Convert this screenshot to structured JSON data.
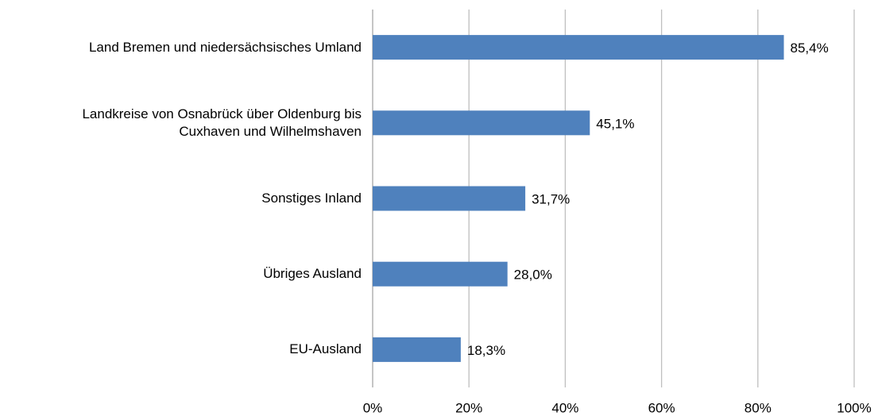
{
  "chart_data": {
    "type": "bar",
    "orientation": "horizontal",
    "categories": [
      "Land Bremen und niedersächsisches Umland",
      "Landkreise von Osnabrück über Oldenburg bis\nCuxhaven und Wilhelmshaven",
      "Sonstiges Inland",
      "Übriges Ausland",
      "EU-Ausland"
    ],
    "values": [
      85.4,
      45.1,
      31.7,
      28.0,
      18.3
    ],
    "value_labels": [
      "85,4%",
      "45,1%",
      "31,7%",
      "28,0%",
      "18,3%"
    ],
    "color": "#4f81bd",
    "xlim": [
      0,
      100
    ],
    "xticks": [
      {
        "value": 0,
        "label": "0%"
      },
      {
        "value": 20,
        "label": "20%"
      },
      {
        "value": 40,
        "label": "40%"
      },
      {
        "value": 60,
        "label": "60%"
      },
      {
        "value": 80,
        "label": "80%"
      },
      {
        "value": 100,
        "label": "100%"
      }
    ],
    "grid": true
  }
}
